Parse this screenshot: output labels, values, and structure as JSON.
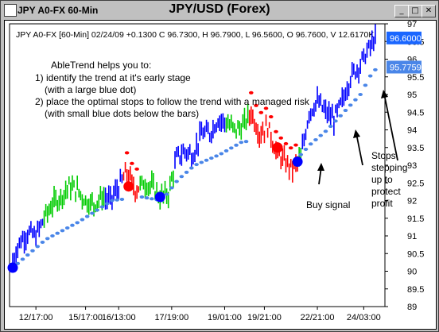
{
  "window": {
    "title": "JPY A0-FX 60-Min",
    "chart_title": "JPY/USD (Forex)",
    "buttons": {
      "minimize": "_",
      "maximize": "□",
      "close": "✕"
    }
  },
  "chart_info": "JPY A0-FX [60-Min] 02/24/09 +0.1300 C 96.7300, H 96.7900, L 96.5600, O 96.7600, V 12.6170K",
  "annotations": {
    "intro": "AbleTrend helps you to:",
    "point1": "1) identify the trend at it's early stage",
    "point1b": "(with a large blue dot)",
    "point2": "2) place the optimal stops to follow the trend with a managed risk",
    "point2b": "(with small blue dots below the bars)",
    "buy_signal": "Buy signal",
    "stops": [
      "Stops",
      "stepping",
      "up to",
      "protect",
      "profit"
    ]
  },
  "price_labels": {
    "last": "96.6000",
    "stop": "95.7759"
  },
  "colors": {
    "up": "#0000ff",
    "neutral": "#00cc00",
    "down": "#ff0000",
    "stop_dot": "#4a86e8",
    "last_bg": "#1a66ff",
    "stop_bg": "#4a86e8"
  },
  "chart_data": {
    "type": "line",
    "title": "JPY/USD (Forex)",
    "ylim": [
      89,
      97
    ],
    "y_ticks": [
      "89",
      "89.5",
      "90",
      "90.5",
      "91",
      "91.5",
      "92",
      "92.5",
      "93",
      "93.5",
      "94",
      "94.5",
      "95",
      "95.5",
      "96",
      "96.5",
      "97"
    ],
    "x_ticks": [
      "12/17:00",
      "15/17:00",
      "16/13:00",
      "17/19:00",
      "19/01:00",
      "19/21:00",
      "22/21:00",
      "24/03:00"
    ],
    "price_path": [
      [
        0,
        90.3
      ],
      [
        4,
        90.8
      ],
      [
        9,
        91.1
      ],
      [
        14,
        91.0
      ],
      [
        19,
        91.5
      ],
      [
        24,
        91.9
      ],
      [
        29,
        92.1
      ],
      [
        34,
        92.4
      ],
      [
        39,
        92.3
      ],
      [
        44,
        92.0
      ],
      [
        49,
        91.9
      ],
      [
        54,
        92.1
      ],
      [
        59,
        92.0
      ],
      [
        64,
        92.4
      ],
      [
        69,
        92.8
      ],
      [
        74,
        92.3
      ],
      [
        79,
        92.5
      ],
      [
        84,
        92.4
      ],
      [
        89,
        92.1
      ],
      [
        94,
        92.2
      ],
      [
        99,
        93.2
      ],
      [
        104,
        93.4
      ],
      [
        109,
        93.3
      ],
      [
        114,
        93.9
      ],
      [
        119,
        93.9
      ],
      [
        124,
        94.3
      ],
      [
        129,
        94.2
      ],
      [
        134,
        94.0
      ],
      [
        139,
        94.1
      ],
      [
        144,
        94.5
      ],
      [
        149,
        93.9
      ],
      [
        154,
        94.1
      ],
      [
        159,
        93.4
      ],
      [
        164,
        93.1
      ],
      [
        169,
        92.9
      ],
      [
        174,
        93.2
      ],
      [
        179,
        94.5
      ],
      [
        184,
        94.8
      ],
      [
        189,
        94.5
      ],
      [
        194,
        94.3
      ],
      [
        199,
        94.8
      ],
      [
        204,
        95.5
      ],
      [
        209,
        95.8
      ],
      [
        214,
        96.2
      ],
      [
        219,
        96.6
      ]
    ],
    "up_segments": [
      [
        0,
        18
      ],
      [
        56,
        66
      ],
      [
        98,
        128
      ],
      [
        175,
        220
      ]
    ],
    "down_segments": [
      [
        67,
        76
      ],
      [
        143,
        172
      ]
    ],
    "stops": [
      [
        0,
        90.1
      ],
      [
        20,
        90.9
      ],
      [
        40,
        91.4
      ],
      [
        50,
        91.7
      ],
      [
        60,
        92.0
      ],
      [
        78,
        92.1
      ],
      [
        90,
        92.0
      ],
      [
        100,
        92.6
      ],
      [
        110,
        93.0
      ],
      [
        125,
        93.3
      ],
      [
        140,
        93.7
      ],
      [
        150,
        93.4
      ],
      [
        170,
        93.1
      ],
      [
        180,
        93.6
      ],
      [
        190,
        94.0
      ],
      [
        200,
        94.5
      ],
      [
        210,
        95.0
      ],
      [
        218,
        95.7
      ]
    ],
    "big_dots": [
      {
        "i": 0,
        "y": 90.1,
        "color": "blue"
      },
      {
        "i": 70,
        "y": 92.4,
        "color": "red"
      },
      {
        "i": 89,
        "y": 92.1,
        "color": "blue"
      },
      {
        "i": 160,
        "y": 93.5,
        "color": "red"
      },
      {
        "i": 172,
        "y": 93.1,
        "color": "blue"
      }
    ],
    "n_bars": 220
  }
}
